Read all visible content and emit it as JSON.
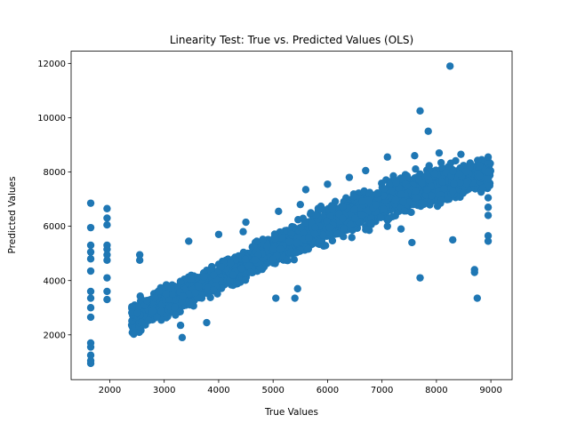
{
  "chart_data": {
    "type": "scatter",
    "title": "Linearity Test: True vs. Predicted Values (OLS)",
    "xlabel": "True Values",
    "ylabel": "Predicted Values",
    "xlim": [
      1290,
      9390
    ],
    "ylim": [
      350,
      12450
    ],
    "xticks": [
      2000,
      3000,
      4000,
      5000,
      6000,
      7000,
      8000,
      9000
    ],
    "yticks": [
      2000,
      4000,
      6000,
      8000,
      10000,
      12000
    ],
    "grid": false,
    "legend": "none",
    "marker_color": "#1f77b4",
    "series": [
      {
        "points_summary": "dense linear band rising from about (2400, 2500) to (9000, 8300); scattered outliers listed below",
        "band": [
          {
            "x": 2450,
            "y_low": 1700,
            "y_high": 3500
          },
          {
            "x": 3000,
            "y_low": 2400,
            "y_high": 4000
          },
          {
            "x": 3500,
            "y_low": 2800,
            "y_high": 4400
          },
          {
            "x": 4000,
            "y_low": 3400,
            "y_high": 4800
          },
          {
            "x": 4500,
            "y_low": 3800,
            "y_high": 5300
          },
          {
            "x": 5000,
            "y_low": 4300,
            "y_high": 5900
          },
          {
            "x": 5500,
            "y_low": 4700,
            "y_high": 6400
          },
          {
            "x": 6000,
            "y_low": 5200,
            "y_high": 7000
          },
          {
            "x": 6500,
            "y_low": 5500,
            "y_high": 7400
          },
          {
            "x": 7000,
            "y_low": 5900,
            "y_high": 7900
          },
          {
            "x": 7500,
            "y_low": 6300,
            "y_high": 8300
          },
          {
            "x": 8000,
            "y_low": 6600,
            "y_high": 8500
          },
          {
            "x": 8500,
            "y_low": 6900,
            "y_high": 8600
          },
          {
            "x": 9000,
            "y_low": 7100,
            "y_high": 8600
          }
        ],
        "points": [
          [
            1650,
            6850
          ],
          [
            1650,
            5950
          ],
          [
            1650,
            5300
          ],
          [
            1650,
            5050
          ],
          [
            1650,
            4800
          ],
          [
            1650,
            4350
          ],
          [
            1650,
            3600
          ],
          [
            1650,
            3350
          ],
          [
            1650,
            3000
          ],
          [
            1650,
            2650
          ],
          [
            1650,
            1700
          ],
          [
            1650,
            1550
          ],
          [
            1650,
            1250
          ],
          [
            1650,
            1050
          ],
          [
            1650,
            950
          ],
          [
            1950,
            6650
          ],
          [
            1950,
            6300
          ],
          [
            1950,
            6050
          ],
          [
            1950,
            5300
          ],
          [
            1950,
            5150
          ],
          [
            1950,
            4950
          ],
          [
            1950,
            4750
          ],
          [
            1950,
            4100
          ],
          [
            1950,
            3600
          ],
          [
            1950,
            3300
          ],
          [
            2550,
            4950
          ],
          [
            2550,
            4750
          ],
          [
            3450,
            5450
          ],
          [
            3330,
            1900
          ],
          [
            3300,
            2350
          ],
          [
            3780,
            2450
          ],
          [
            4000,
            5700
          ],
          [
            4450,
            5800
          ],
          [
            4500,
            6150
          ],
          [
            5050,
            3350
          ],
          [
            5450,
            3700
          ],
          [
            5400,
            3350
          ],
          [
            7700,
            10250
          ],
          [
            7850,
            9500
          ],
          [
            8250,
            11900
          ],
          [
            7700,
            4100
          ],
          [
            7550,
            5400
          ],
          [
            8300,
            5500
          ],
          [
            8700,
            4400
          ],
          [
            8700,
            4300
          ],
          [
            8750,
            3350
          ],
          [
            8950,
            5650
          ],
          [
            8950,
            5450
          ],
          [
            8950,
            6400
          ],
          [
            8950,
            6700
          ],
          [
            8950,
            7050
          ],
          [
            8950,
            7750
          ],
          [
            8950,
            8000
          ],
          [
            8950,
            8400
          ],
          [
            8950,
            8550
          ],
          [
            4700,
            5450
          ],
          [
            6300,
            5900
          ],
          [
            7100,
            6000
          ],
          [
            6800,
            6100
          ],
          [
            7350,
            5900
          ],
          [
            5100,
            6550
          ],
          [
            5600,
            7350
          ],
          [
            6400,
            7800
          ],
          [
            6700,
            8050
          ],
          [
            7100,
            8550
          ],
          [
            7600,
            8600
          ],
          [
            8050,
            8700
          ],
          [
            8450,
            8650
          ],
          [
            6000,
            7550
          ],
          [
            5500,
            6800
          ]
        ]
      }
    ]
  }
}
